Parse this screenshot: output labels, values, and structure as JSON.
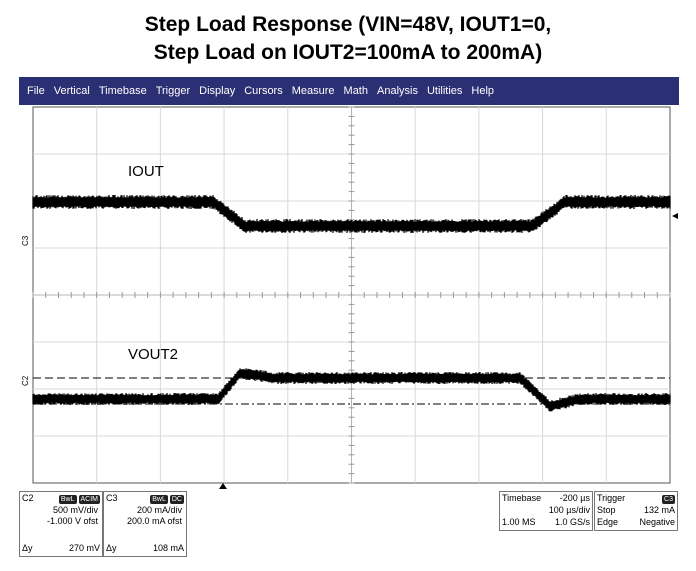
{
  "title": {
    "line1": "Step Load Response (VIN=48V, IOUT1=0,",
    "line2": "Step Load on IOUT2=100mA to 200mA)"
  },
  "menu": [
    "File",
    "Vertical",
    "Timebase",
    "Trigger",
    "Display",
    "Cursors",
    "Measure",
    "Math",
    "Analysis",
    "Utilities",
    "Help"
  ],
  "traces": {
    "c3_label": "IOUT",
    "c2_label": "VOUT2",
    "c3_marker": "C3",
    "c2_marker": "C2",
    "color": "#000000"
  },
  "c2_box": {
    "name": "C2",
    "badge1": "BwL",
    "badge2": "ACIM",
    "scale": "500 mV/div",
    "offset": "-1.000 V ofst",
    "dy_label": "Δy",
    "dy_value": "270 mV"
  },
  "c3_box": {
    "name": "C3",
    "badge1": "BwL",
    "badge2": "DC",
    "scale": "200 mA/div",
    "offset": "200.0 mA ofst",
    "dy_label": "Δy",
    "dy_value": "108 mA"
  },
  "timebase_box": {
    "label": "Timebase",
    "delay": "-200 µs",
    "div": "100 µs/div",
    "samples": "1.00 MS",
    "rate": "1.0 GS/s"
  },
  "trigger_box": {
    "label": "Trigger",
    "channel": "C3",
    "mode": "Stop",
    "level": "132 mA",
    "type": "Edge",
    "slope": "Negative"
  }
}
